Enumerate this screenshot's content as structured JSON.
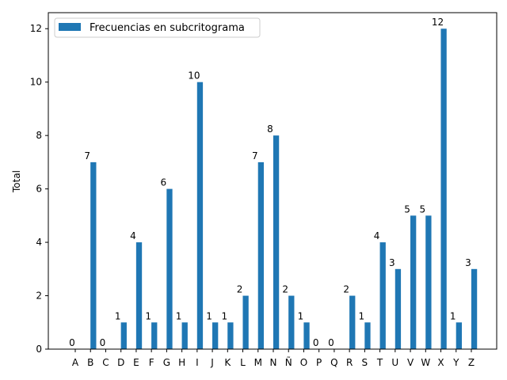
{
  "chart_data": {
    "type": "bar",
    "title": "",
    "xlabel": "",
    "ylabel": "Total",
    "ylim": [
      0,
      12.6
    ],
    "yticks": [
      0,
      2,
      4,
      6,
      8,
      10,
      12
    ],
    "grid": false,
    "legend_position": "top-left",
    "categories": [
      "A",
      "B",
      "C",
      "D",
      "E",
      "F",
      "G",
      "H",
      "I",
      "J",
      "K",
      "L",
      "M",
      "N",
      "Ñ",
      "O",
      "P",
      "Q",
      "R",
      "S",
      "T",
      "U",
      "V",
      "W",
      "X",
      "Y",
      "Z"
    ],
    "series": [
      {
        "name": "Frecuencias en subcritograma",
        "color": "#1f77b4",
        "values": [
          0,
          7,
          0,
          1,
          4,
          1,
          6,
          1,
          10,
          1,
          1,
          2,
          7,
          8,
          2,
          1,
          0,
          0,
          2,
          1,
          4,
          3,
          5,
          5,
          12,
          1,
          3
        ]
      }
    ],
    "data_labels": [
      "0",
      "7",
      "0",
      "1",
      "4",
      "1",
      "6",
      "1",
      "10",
      "1",
      "1",
      "2",
      "7",
      "8",
      "2",
      "1",
      "0",
      "0",
      "2",
      "1",
      "4",
      "3",
      "5",
      "5",
      "12",
      "1",
      "3"
    ]
  }
}
